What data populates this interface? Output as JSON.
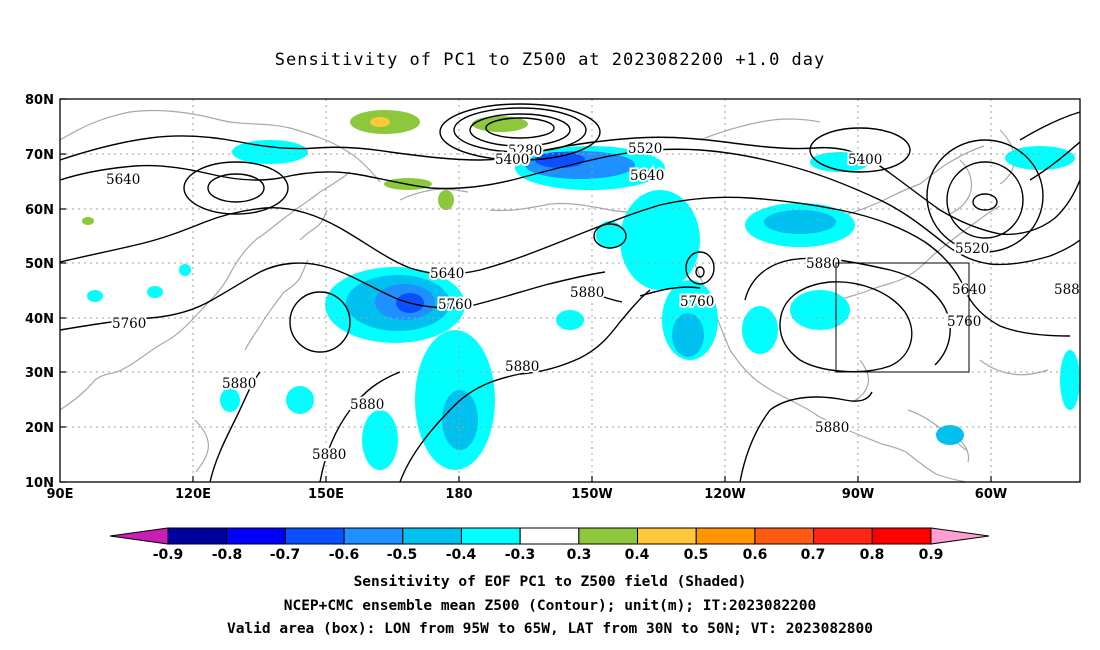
{
  "title": "Sensitivity of PC1 to Z500 at 2023082200 +1.0 day",
  "map": {
    "lat_labels": [
      "80N",
      "70N",
      "60N",
      "50N",
      "40N",
      "30N",
      "20N",
      "10N"
    ],
    "lon_labels": [
      "90E",
      "120E",
      "150E",
      "180",
      "150W",
      "120W",
      "90W",
      "60W"
    ],
    "contour_labels": [
      {
        "text": "5280"
      },
      {
        "text": "5400"
      },
      {
        "text": "5520"
      },
      {
        "text": "5640"
      },
      {
        "text": "5400"
      },
      {
        "text": "5640"
      },
      {
        "text": "5520"
      },
      {
        "text": "5640"
      },
      {
        "text": "5880"
      },
      {
        "text": "5640"
      },
      {
        "text": "5760"
      },
      {
        "text": "5880"
      },
      {
        "text": "5760"
      },
      {
        "text": "5760"
      },
      {
        "text": "5760"
      },
      {
        "text": "5880"
      },
      {
        "text": "5880"
      },
      {
        "text": "5880"
      },
      {
        "text": "5880"
      },
      {
        "text": "5880"
      },
      {
        "text": "588"
      }
    ],
    "valid_box": {
      "lon_from": "95W",
      "lon_to": "65W",
      "lat_from": "30N",
      "lat_to": "50N"
    }
  },
  "colorbar": {
    "labels": [
      "-0.9",
      "-0.8",
      "-0.7",
      "-0.6",
      "-0.5",
      "-0.4",
      "-0.3",
      "0.3",
      "0.4",
      "0.5",
      "0.6",
      "0.7",
      "0.8",
      "0.9"
    ],
    "colors": [
      "#0000a0",
      "#0000ff",
      "#0a50ff",
      "#1e90ff",
      "#00c0f0",
      "#00ffff",
      "#ffffff",
      "#8cc83c",
      "#ffc83c",
      "#ff9600",
      "#ff5a14",
      "#ff2814",
      "#ff0000"
    ],
    "low_end_color": "#c81eb4",
    "high_end_color": "#ffa0d2"
  },
  "captions": {
    "line1": "Sensitivity of EOF PC1 to Z500 field (Shaded)",
    "line2": "NCEP+CMC ensemble mean Z500 (Contour); unit(m); IT:2023082200",
    "line3": "Valid area (box): LON from 95W to 65W, LAT from 30N to 50N; VT: 2023082800"
  }
}
